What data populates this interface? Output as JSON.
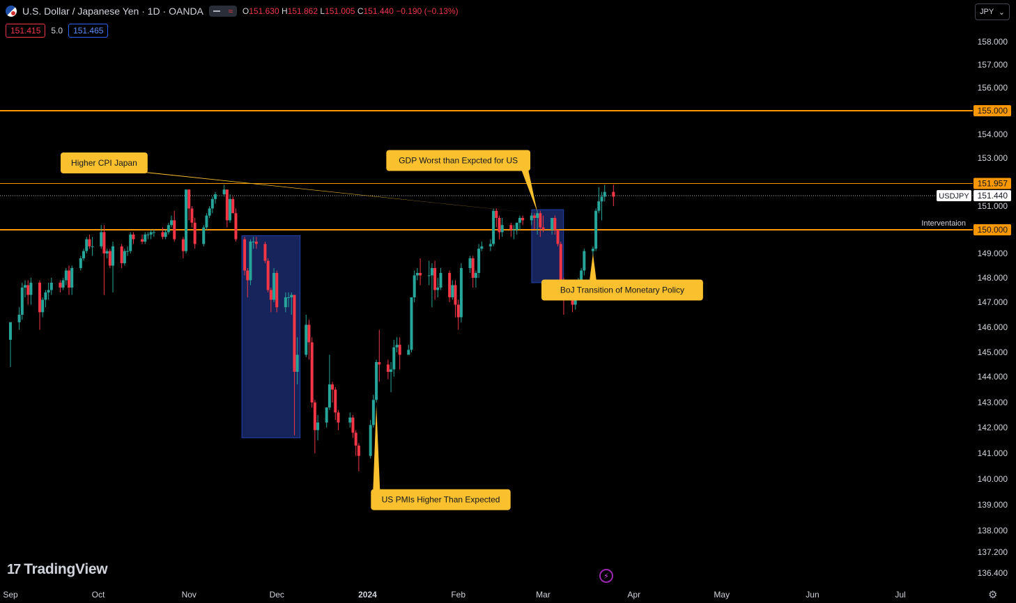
{
  "header": {
    "title": "U.S. Dollar / Japanese Yen · 1D · OANDA",
    "ohlc": [
      {
        "k": "O",
        "v": "151.630"
      },
      {
        "k": "H",
        "v": "151.862"
      },
      {
        "k": "L",
        "v": "151.005"
      },
      {
        "k": "C",
        "v": "151.440"
      }
    ],
    "change": "−0.190 (−0.13%)",
    "toggle_glyph": "≈"
  },
  "quotes": {
    "bid": "151.415",
    "spread": "5.0",
    "ask": "151.465"
  },
  "currency_selector": {
    "value": "JPY",
    "chevron": "⌄"
  },
  "logo_text": "TradingView",
  "logo_mark": "17",
  "icons": {
    "flag": "usd-jpy-flag-icon",
    "bolt": "lightning-icon",
    "settings": "gear-icon",
    "settings_glyph": "⚙"
  },
  "colors": {
    "up": "#26a69a",
    "down": "#f23645",
    "line": "#ff9800",
    "box": "#1b2a6b",
    "callout": "#fbc02d"
  },
  "chart_data": {
    "type": "candlestick",
    "symbol": "USDJPY",
    "interval": "1D",
    "ylim": [
      136.0,
      159.0
    ],
    "y_ticks": [
      "136.400",
      "137.200",
      "138.000",
      "139.000",
      "140.000",
      "141.000",
      "142.000",
      "143.000",
      "144.000",
      "145.000",
      "146.000",
      "147.000",
      "148.000",
      "149.000",
      "150.000",
      "151.000",
      "152.000",
      "153.000",
      "154.000",
      "155.000",
      "156.000",
      "157.000",
      "158.000"
    ],
    "y_tick_values": [
      136.4,
      137.2,
      138,
      139,
      140,
      141,
      142,
      143,
      144,
      145,
      146,
      147,
      148,
      149,
      150,
      151,
      152,
      153,
      154,
      155,
      156,
      157,
      158
    ],
    "x_labels": [
      {
        "label": "Sep",
        "date": "2023-09-01"
      },
      {
        "label": "Oct",
        "date": "2023-10-01"
      },
      {
        "label": "Nov",
        "date": "2023-11-01"
      },
      {
        "label": "Dec",
        "date": "2023-12-01"
      },
      {
        "label": "2024",
        "date": "2024-01-01"
      },
      {
        "label": "Feb",
        "date": "2024-02-01"
      },
      {
        "label": "Mar",
        "date": "2024-03-01"
      },
      {
        "label": "Apr",
        "date": "2024-04-01"
      },
      {
        "label": "May",
        "date": "2024-05-01"
      },
      {
        "label": "Jun",
        "date": "2024-06-01"
      },
      {
        "label": "Jul",
        "date": "2024-07-01"
      }
    ],
    "candles": [
      [
        "2023-09-01",
        145.5,
        146.2,
        144.4,
        146.2
      ],
      [
        "2023-09-04",
        146.2,
        146.8,
        145.9,
        146.5
      ],
      [
        "2023-09-05",
        146.5,
        147.8,
        146.3,
        147.6
      ],
      [
        "2023-09-06",
        147.6,
        147.9,
        147.2,
        147.7
      ],
      [
        "2023-09-07",
        147.7,
        147.9,
        146.9,
        147.3
      ],
      [
        "2023-09-08",
        147.3,
        148.0,
        146.9,
        147.8
      ],
      [
        "2023-09-11",
        147.8,
        147.9,
        145.9,
        146.6
      ],
      [
        "2023-09-12",
        146.6,
        147.2,
        146.4,
        147.1
      ],
      [
        "2023-09-13",
        147.1,
        147.5,
        146.8,
        147.4
      ],
      [
        "2023-09-14",
        147.4,
        147.8,
        147.1,
        147.5
      ],
      [
        "2023-09-15",
        147.5,
        148.0,
        147.3,
        147.8
      ],
      [
        "2023-09-18",
        147.8,
        147.9,
        147.4,
        147.6
      ],
      [
        "2023-09-19",
        147.6,
        148.0,
        147.5,
        147.9
      ],
      [
        "2023-09-20",
        147.9,
        148.4,
        147.7,
        148.3
      ],
      [
        "2023-09-21",
        148.3,
        148.5,
        147.3,
        147.6
      ],
      [
        "2023-09-22",
        147.6,
        148.5,
        147.3,
        148.4
      ],
      [
        "2023-09-25",
        148.4,
        148.9,
        148.3,
        148.8
      ],
      [
        "2023-09-26",
        148.8,
        149.2,
        148.7,
        149.1
      ],
      [
        "2023-09-27",
        149.1,
        149.7,
        149.0,
        149.6
      ],
      [
        "2023-09-28",
        149.6,
        149.8,
        149.2,
        149.3
      ],
      [
        "2023-09-29",
        149.3,
        149.7,
        148.9,
        149.3
      ],
      [
        "2023-10-02",
        149.3,
        150.2,
        149.2,
        149.9
      ],
      [
        "2023-10-03",
        149.9,
        150.2,
        147.3,
        149.0
      ],
      [
        "2023-10-04",
        149.0,
        149.2,
        148.8,
        149.1
      ],
      [
        "2023-10-05",
        149.1,
        149.2,
        148.4,
        148.5
      ],
      [
        "2023-10-06",
        148.5,
        149.5,
        147.4,
        149.3
      ],
      [
        "2023-10-09",
        149.3,
        149.4,
        148.4,
        148.6
      ],
      [
        "2023-10-10",
        148.6,
        149.2,
        148.5,
        149.1
      ],
      [
        "2023-10-11",
        149.1,
        149.3,
        148.9,
        149.1
      ],
      [
        "2023-10-12",
        149.1,
        149.9,
        149.0,
        149.8
      ],
      [
        "2023-10-13",
        149.8,
        149.9,
        149.4,
        149.6
      ],
      [
        "2023-10-16",
        149.6,
        149.8,
        149.4,
        149.5
      ],
      [
        "2023-10-17",
        149.5,
        149.9,
        149.4,
        149.8
      ],
      [
        "2023-10-18",
        149.8,
        149.9,
        149.6,
        149.8
      ],
      [
        "2023-10-19",
        149.8,
        150.0,
        149.6,
        149.9
      ],
      [
        "2023-10-20",
        149.9,
        150.0,
        149.7,
        149.9
      ],
      [
        "2023-10-23",
        149.9,
        150.1,
        149.6,
        149.7
      ],
      [
        "2023-10-24",
        149.7,
        150.0,
        149.6,
        149.9
      ],
      [
        "2023-10-25",
        149.9,
        150.3,
        149.8,
        150.2
      ],
      [
        "2023-10-26",
        150.2,
        150.6,
        150.1,
        150.4
      ],
      [
        "2023-10-27",
        150.4,
        150.8,
        149.5,
        149.6
      ],
      [
        "2023-10-30",
        149.6,
        149.7,
        148.8,
        149.1
      ],
      [
        "2023-10-31",
        149.1,
        151.7,
        149.0,
        151.7
      ],
      [
        "2023-11-01",
        151.7,
        151.7,
        150.4,
        150.9
      ],
      [
        "2023-11-02",
        150.9,
        151.0,
        150.1,
        150.3
      ],
      [
        "2023-11-03",
        150.3,
        150.5,
        149.2,
        149.4
      ],
      [
        "2023-11-06",
        149.4,
        150.2,
        149.3,
        150.1
      ],
      [
        "2023-11-07",
        150.1,
        150.7,
        150.0,
        150.6
      ],
      [
        "2023-11-08",
        150.6,
        151.0,
        150.5,
        150.9
      ],
      [
        "2023-11-09",
        150.9,
        151.4,
        150.7,
        151.3
      ],
      [
        "2023-11-10",
        151.3,
        151.6,
        151.1,
        151.5
      ],
      [
        "2023-11-13",
        151.5,
        151.9,
        151.4,
        151.7
      ],
      [
        "2023-11-14",
        151.7,
        151.7,
        150.1,
        150.4
      ],
      [
        "2023-11-15",
        150.4,
        151.5,
        150.3,
        151.3
      ],
      [
        "2023-11-16",
        151.3,
        151.4,
        150.7,
        150.7
      ],
      [
        "2023-11-17",
        150.7,
        150.9,
        149.5,
        149.6
      ],
      [
        "2023-11-20",
        149.6,
        149.7,
        148.1,
        148.3
      ],
      [
        "2023-11-21",
        148.3,
        148.4,
        147.2,
        147.9
      ],
      [
        "2023-11-22",
        147.9,
        149.6,
        147.7,
        149.5
      ],
      [
        "2023-11-23",
        149.5,
        149.7,
        149.2,
        149.5
      ],
      [
        "2023-11-24",
        149.5,
        149.7,
        149.2,
        149.4
      ],
      [
        "2023-11-27",
        149.4,
        149.5,
        148.6,
        148.7
      ],
      [
        "2023-11-28",
        148.7,
        148.8,
        147.4,
        147.5
      ],
      [
        "2023-11-29",
        147.5,
        147.6,
        146.6,
        147.1
      ],
      [
        "2023-11-30",
        147.1,
        148.4,
        147.0,
        148.2
      ],
      [
        "2023-12-01",
        148.2,
        148.3,
        146.6,
        146.8
      ],
      [
        "2023-12-04",
        146.8,
        147.4,
        146.6,
        147.2
      ],
      [
        "2023-12-05",
        147.2,
        147.4,
        146.8,
        147.2
      ],
      [
        "2023-12-06",
        147.2,
        147.4,
        146.5,
        147.3
      ],
      [
        "2023-12-07",
        147.3,
        147.3,
        141.7,
        144.2
      ],
      [
        "2023-12-08",
        144.2,
        145.6,
        143.7,
        144.9
      ],
      [
        "2023-12-11",
        144.9,
        146.5,
        144.8,
        146.1
      ],
      [
        "2023-12-12",
        146.1,
        146.3,
        144.7,
        145.4
      ],
      [
        "2023-12-13",
        145.4,
        145.6,
        142.8,
        143.0
      ],
      [
        "2023-12-14",
        143.0,
        143.1,
        141.0,
        141.9
      ],
      [
        "2023-12-15",
        141.9,
        142.5,
        141.5,
        142.2
      ],
      [
        "2023-12-18",
        142.2,
        142.8,
        142.0,
        142.8
      ],
      [
        "2023-12-19",
        142.8,
        144.9,
        142.7,
        143.7
      ],
      [
        "2023-12-20",
        143.7,
        143.8,
        143.0,
        143.5
      ],
      [
        "2023-12-21",
        143.5,
        143.6,
        142.3,
        142.6
      ],
      [
        "2023-12-22",
        142.6,
        142.7,
        141.9,
        142.2
      ],
      [
        "2023-12-26",
        142.2,
        142.6,
        142.0,
        142.4
      ],
      [
        "2023-12-27",
        142.4,
        142.5,
        141.6,
        141.8
      ],
      [
        "2023-12-28",
        141.8,
        141.9,
        140.9,
        141.3
      ],
      [
        "2023-12-29",
        141.3,
        141.4,
        140.3,
        140.9
      ],
      [
        "2024-01-02",
        140.9,
        142.3,
        140.8,
        142.1
      ],
      [
        "2024-01-03",
        142.1,
        143.3,
        142.0,
        143.1
      ],
      [
        "2024-01-04",
        143.1,
        144.7,
        143.0,
        144.6
      ],
      [
        "2024-01-05",
        144.6,
        145.9,
        143.8,
        144.5
      ],
      [
        "2024-01-08",
        144.5,
        144.7,
        143.9,
        144.2
      ],
      [
        "2024-01-09",
        144.2,
        144.6,
        143.4,
        144.3
      ],
      [
        "2024-01-10",
        144.3,
        145.5,
        144.0,
        145.2
      ],
      [
        "2024-01-11",
        145.2,
        145.6,
        145.0,
        145.3
      ],
      [
        "2024-01-12",
        145.3,
        145.6,
        144.3,
        144.9
      ],
      [
        "2024-01-15",
        144.9,
        145.3,
        144.9,
        145.1
      ],
      [
        "2024-01-16",
        145.1,
        147.2,
        145.0,
        147.2
      ],
      [
        "2024-01-17",
        147.2,
        148.3,
        147.0,
        148.1
      ],
      [
        "2024-01-18",
        148.1,
        148.4,
        147.9,
        148.2
      ],
      [
        "2024-01-19",
        148.2,
        148.8,
        147.7,
        148.1
      ],
      [
        "2024-01-22",
        148.1,
        148.7,
        147.7,
        148.1
      ],
      [
        "2024-01-23",
        148.1,
        148.6,
        146.8,
        148.4
      ],
      [
        "2024-01-24",
        148.4,
        148.7,
        147.1,
        147.5
      ],
      [
        "2024-01-25",
        147.5,
        148.0,
        147.2,
        147.6
      ],
      [
        "2024-01-26",
        147.6,
        148.4,
        147.5,
        148.2
      ],
      [
        "2024-01-29",
        148.2,
        148.3,
        147.0,
        147.2
      ],
      [
        "2024-01-30",
        147.2,
        147.9,
        147.1,
        147.7
      ],
      [
        "2024-01-31",
        147.7,
        147.9,
        146.4,
        146.9
      ],
      [
        "2024-02-01",
        146.9,
        147.1,
        145.9,
        146.4
      ],
      [
        "2024-02-02",
        146.4,
        148.6,
        146.2,
        148.4
      ],
      [
        "2024-02-05",
        148.4,
        148.9,
        148.2,
        148.8
      ],
      [
        "2024-02-06",
        148.8,
        148.9,
        147.6,
        148.0
      ],
      [
        "2024-02-07",
        148.0,
        148.3,
        147.6,
        148.2
      ],
      [
        "2024-02-08",
        148.2,
        149.4,
        148.0,
        149.2
      ],
      [
        "2024-02-09",
        149.2,
        149.5,
        149.1,
        149.3
      ],
      [
        "2024-02-12",
        149.3,
        149.6,
        149.1,
        149.4
      ],
      [
        "2024-02-13",
        149.4,
        150.9,
        149.3,
        150.8
      ],
      [
        "2024-02-14",
        150.8,
        150.9,
        150.1,
        150.5
      ],
      [
        "2024-02-15",
        150.5,
        150.6,
        149.6,
        149.9
      ],
      [
        "2024-02-16",
        149.9,
        150.5,
        149.7,
        150.2
      ],
      [
        "2024-02-19",
        150.2,
        150.3,
        149.7,
        150.0
      ],
      [
        "2024-02-20",
        150.0,
        150.2,
        149.6,
        150.0
      ],
      [
        "2024-02-21",
        150.0,
        150.3,
        149.8,
        150.3
      ],
      [
        "2024-02-22",
        150.3,
        150.6,
        150.0,
        150.5
      ],
      [
        "2024-02-23",
        150.5,
        150.6,
        150.2,
        150.4
      ],
      [
        "2024-02-26",
        150.4,
        150.7,
        150.2,
        150.6
      ],
      [
        "2024-02-27",
        150.6,
        150.7,
        150.0,
        150.5
      ],
      [
        "2024-02-28",
        150.5,
        150.8,
        149.8,
        150.7
      ],
      [
        "2024-02-29",
        150.7,
        150.8,
        149.7,
        150.1
      ],
      [
        "2024-03-01",
        150.1,
        150.6,
        149.9,
        150.0
      ],
      [
        "2024-03-04",
        150.0,
        150.5,
        149.8,
        150.5
      ],
      [
        "2024-03-05",
        150.5,
        150.6,
        149.8,
        150.0
      ],
      [
        "2024-03-06",
        150.0,
        150.0,
        149.3,
        149.4
      ],
      [
        "2024-03-07",
        149.4,
        149.5,
        147.6,
        147.9
      ],
      [
        "2024-03-08",
        147.9,
        148.0,
        146.5,
        147.1
      ],
      [
        "2024-03-11",
        147.1,
        147.4,
        146.6,
        146.9
      ],
      [
        "2024-03-12",
        146.9,
        147.8,
        146.7,
        147.6
      ],
      [
        "2024-03-13",
        147.6,
        148.0,
        147.3,
        147.8
      ],
      [
        "2024-03-14",
        147.8,
        148.4,
        147.4,
        148.3
      ],
      [
        "2024-03-15",
        148.3,
        149.2,
        148.1,
        149.1
      ],
      [
        "2024-03-18",
        149.1,
        149.3,
        148.9,
        149.2
      ],
      [
        "2024-03-19",
        149.2,
        150.9,
        149.1,
        150.8
      ],
      [
        "2024-03-20",
        150.8,
        151.8,
        150.7,
        151.2
      ],
      [
        "2024-03-21",
        151.2,
        151.6,
        150.4,
        151.4
      ],
      [
        "2024-03-22",
        151.4,
        151.9,
        151.2,
        151.6
      ],
      [
        "2024-03-25",
        151.6,
        151.9,
        151.0,
        151.4
      ]
    ],
    "horizontal_lines": [
      {
        "price": 155.0,
        "label": "155.000",
        "name": "",
        "width": 2
      },
      {
        "price": 151.957,
        "label": "151.957",
        "name": "",
        "width": 1
      },
      {
        "price": 150.0,
        "label": "150.000",
        "name": "Interventaion",
        "width": 2
      }
    ],
    "current_price": {
      "price": 151.44,
      "label": "151.440",
      "symbol": "USDJPY"
    },
    "boxes": [
      {
        "name": "box-dec-drop",
        "from": "2023-11-20",
        "to": "2023-12-08",
        "top": 149.75,
        "bottom": 141.6
      },
      {
        "name": "box-feb-range",
        "from": "2024-02-27",
        "to": "2024-03-07",
        "top": 150.85,
        "bottom": 147.8
      }
    ],
    "annotations": [
      {
        "name": "callout-higher-cpi-japan",
        "text": "Higher CPI Japan",
        "label_anchor": [
          "2023-10-03",
          152.8
        ],
        "target": [
          "2024-02-27",
          150.7
        ]
      },
      {
        "name": "callout-gdp-us",
        "text": "GDP Worst than Expcted for US",
        "label_anchor": [
          "2024-02-01",
          152.9
        ],
        "target": [
          "2024-02-28",
          150.75
        ]
      },
      {
        "name": "callout-us-pmis",
        "text": "US PMIs Higher Than Expected",
        "label_anchor": [
          "2024-01-26",
          139.2
        ],
        "target": [
          "2024-01-04",
          142.9
        ]
      },
      {
        "name": "callout-boj",
        "text": "BoJ Transition of Monetary Policy",
        "label_anchor": [
          "2024-03-28",
          147.5
        ],
        "target": [
          "2024-03-18",
          149.0
        ]
      }
    ]
  }
}
